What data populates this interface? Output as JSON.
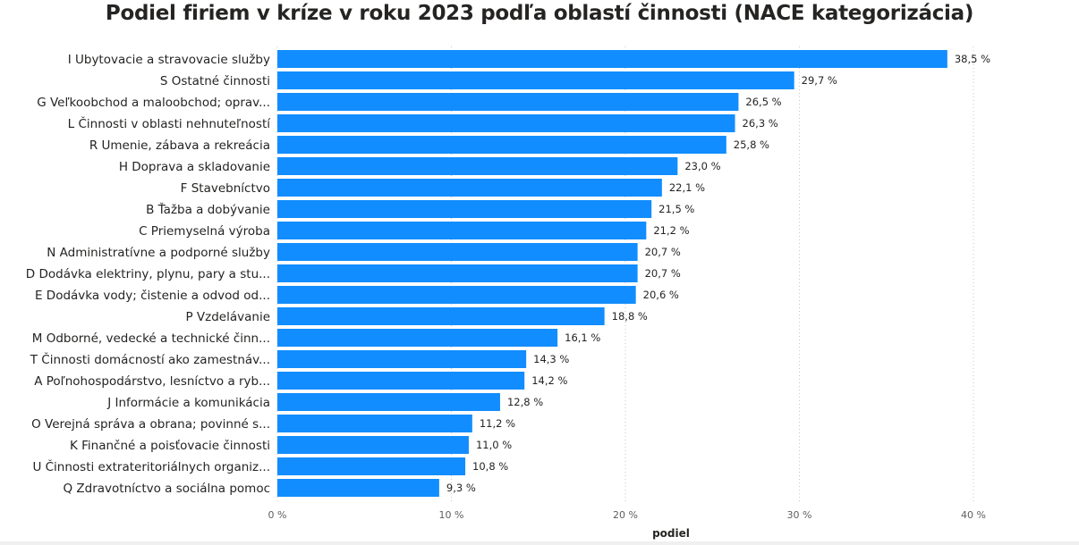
{
  "chart_data": {
    "type": "bar",
    "orientation": "horizontal",
    "title": "Podiel firiem v kríze v roku 2023 podľa oblastí činnosti (NACE kategorizácia)",
    "xlabel": "podiel",
    "ylabel": "",
    "xlim": [
      0,
      45
    ],
    "x_ticks": [
      0,
      10,
      20,
      30,
      40
    ],
    "x_tick_labels": [
      "0 %",
      "10 %",
      "20 %",
      "30 %",
      "40 %"
    ],
    "grid": "vertical dotted",
    "bar_color": "#118DFF",
    "categories": [
      "I Ubytovacie a stravovacie služby",
      "S Ostatné činnosti",
      "G Veľkoobchod a maloobchod; oprav...",
      "L Činnosti v oblasti nehnuteľností",
      "R Umenie, zábava a rekreácia",
      "H Doprava a skladovanie",
      "F Stavebníctvo",
      "B Ťažba a dobývanie",
      "C Priemyselná výroba",
      "N Administratívne a podporné služby",
      "D Dodávka elektriny, plynu, pary a stu...",
      "E Dodávka vody; čistenie a odvod od...",
      "P Vzdelávanie",
      "M Odborné, vedecké a technické činn...",
      "T Činnosti domácností ako zamestnáv...",
      "A Poľnohospodárstvo, lesníctvo a ryb...",
      "J Informácie a komunikácia",
      "O Verejná správa a obrana; povinné s...",
      "K Finančné a poisťovacie činnosti",
      "U Činnosti extrateritoriálnych organiz...",
      "Q Zdravotníctvo a sociálna pomoc"
    ],
    "values": [
      38.5,
      29.7,
      26.5,
      26.3,
      25.8,
      23.0,
      22.1,
      21.5,
      21.2,
      20.7,
      20.7,
      20.6,
      18.8,
      16.1,
      14.3,
      14.2,
      12.8,
      11.2,
      11.0,
      10.8,
      9.3
    ],
    "value_labels": [
      "38,5 %",
      "29,7 %",
      "26,5 %",
      "26,3 %",
      "25,8 %",
      "23,0 %",
      "22,1 %",
      "21,5 %",
      "21,2 %",
      "20,7 %",
      "20,7 %",
      "20,6 %",
      "18,8 %",
      "16,1 %",
      "14,3 %",
      "14,2 %",
      "12,8 %",
      "11,2 %",
      "11,0 %",
      "10,8 %",
      "9,3 %"
    ]
  }
}
